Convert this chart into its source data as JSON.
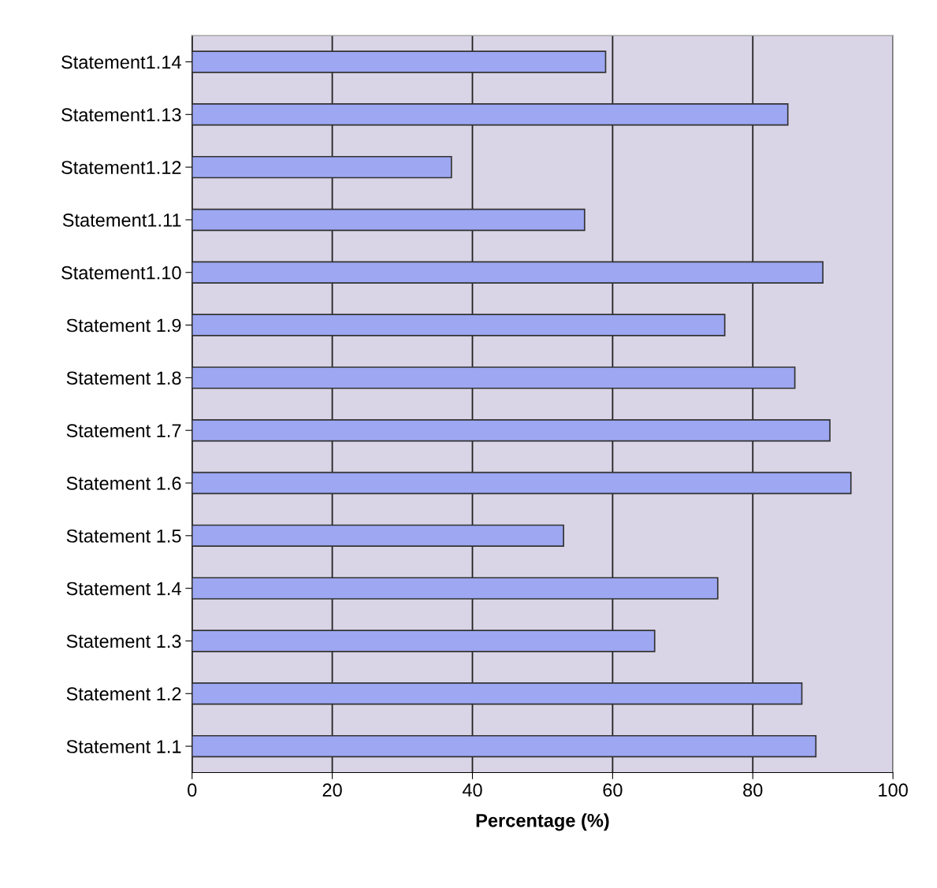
{
  "chart_data": {
    "type": "bar",
    "orientation": "horizontal",
    "xlabel": "Percentage (%)",
    "categories": [
      "Statement1.14",
      "Statement1.13",
      "Statement1.12",
      "Statement1.11",
      "Statement1.10",
      "Statement 1.9",
      "Statement 1.8",
      "Statement 1.7",
      "Statement 1.6",
      "Statement 1.5",
      "Statement 1.4",
      "Statement 1.3",
      "Statement 1.2",
      "Statement 1.1"
    ],
    "values": [
      59,
      85,
      37,
      56,
      90,
      76,
      86,
      91,
      94,
      53,
      75,
      66,
      87,
      89
    ],
    "color": "#9da7f2",
    "xlim": [
      0,
      100
    ],
    "xticks": [
      0,
      20,
      40,
      60,
      80,
      100
    ],
    "grid": "x",
    "legend": false
  }
}
